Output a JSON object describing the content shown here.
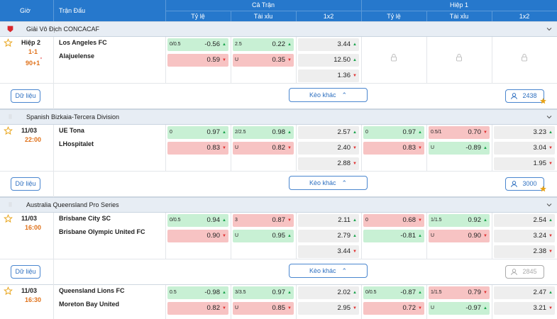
{
  "header": {
    "time": "Giờ",
    "match": "Trận Đấu",
    "full": "Cả Trận",
    "half": "Hiệp 1",
    "columns": [
      "Tỷ lệ",
      "Tài xỉu",
      "1x2",
      "Tỷ lệ",
      "Tài xỉu",
      "1x2"
    ]
  },
  "leagues": [
    {
      "name": "Giải Vô Địch CONCACAF",
      "matches": [
        {
          "time": "Hiệp 2",
          "score": "1-1",
          "clock": "90+1",
          "clock_mark": "'",
          "home": "Los Angeles FC",
          "away": "Alajuelense",
          "full": {
            "handicap": {
              "line": "0/0.5",
              "home": {
                "value": "-0.56",
                "move": "up"
              },
              "away": {
                "value": "0.59",
                "move": "down"
              }
            },
            "total": {
              "line": "2.5",
              "over": {
                "value": "0.22",
                "move": "up"
              },
              "under_label": "U",
              "under": {
                "value": "0.35",
                "move": "down"
              }
            },
            "x12": [
              {
                "value": "3.44",
                "move": "up"
              },
              {
                "value": "12.50",
                "move": "up"
              },
              {
                "value": "1.36",
                "move": "down"
              }
            ]
          },
          "half": null
        }
      ],
      "footer": {
        "data_button": "Dữ liệu",
        "more": "Kèo khác",
        "count": "2438",
        "active": true
      }
    },
    {
      "name": "Spanish Bizkaia-Tercera Division",
      "matches": [
        {
          "time": "11/03",
          "clock": "22:00",
          "home": "UE Tona",
          "away": "LHospitalet",
          "full": {
            "handicap": {
              "line": "0",
              "home": {
                "value": "0.97",
                "move": "up"
              },
              "away": {
                "value": "0.83",
                "move": "down"
              }
            },
            "total": {
              "line": "2/2.5",
              "over": {
                "value": "0.98",
                "move": "up"
              },
              "under_label": "U",
              "under": {
                "value": "0.82",
                "move": "down"
              }
            },
            "x12": [
              {
                "value": "2.57",
                "move": "up"
              },
              {
                "value": "2.40",
                "move": "down"
              },
              {
                "value": "2.88",
                "move": "down"
              }
            ]
          },
          "half": {
            "handicap": {
              "line": "0",
              "home": {
                "value": "0.97",
                "move": "up"
              },
              "away": {
                "value": "0.83",
                "move": "down"
              }
            },
            "total": {
              "line": "0.5/1",
              "over": {
                "value": "0.70",
                "move": "down"
              },
              "under_label": "U",
              "under": {
                "value": "-0.89",
                "move": "up"
              }
            },
            "x12": [
              {
                "value": "3.23",
                "move": "up"
              },
              {
                "value": "3.04",
                "move": "down"
              },
              {
                "value": "1.95",
                "move": "down"
              }
            ]
          }
        }
      ],
      "footer": {
        "data_button": "Dữ liệu",
        "more": "Kèo khác",
        "count": "3000",
        "active": true
      }
    },
    {
      "name": "Australia Queensland Pro Series",
      "matches": [
        {
          "time": "11/03",
          "clock": "16:00",
          "home": "Brisbane City SC",
          "away": "Brisbane Olympic United FC",
          "full": {
            "handicap": {
              "line": "0/0.5",
              "home": {
                "value": "0.94",
                "move": "up"
              },
              "away": {
                "value": "0.90",
                "move": "down"
              }
            },
            "total": {
              "line": "3",
              "over": {
                "value": "0.87",
                "move": "down"
              },
              "under_label": "U",
              "under": {
                "value": "0.95",
                "move": "up"
              }
            },
            "x12": [
              {
                "value": "2.11",
                "move": "up"
              },
              {
                "value": "2.79",
                "move": "up"
              },
              {
                "value": "3.44",
                "move": "down"
              }
            ]
          },
          "half": {
            "handicap": {
              "line": "0",
              "home": {
                "value": "0.68",
                "move": "down"
              },
              "away": {
                "value": "-0.81",
                "move": "up"
              }
            },
            "total": {
              "line": "1/1.5",
              "over": {
                "value": "0.92",
                "move": "up"
              },
              "under_label": "U",
              "under": {
                "value": "0.90",
                "move": "down"
              }
            },
            "x12": [
              {
                "value": "2.54",
                "move": "up"
              },
              {
                "value": "3.24",
                "move": "down"
              },
              {
                "value": "2.38",
                "move": "down"
              }
            ]
          }
        },
        {
          "time": "11/03",
          "clock": "16:30",
          "home": "Queensland Lions FC",
          "away": "Moreton Bay United",
          "full": {
            "handicap": {
              "line": "0.5",
              "home": {
                "value": "-0.98",
                "move": "up"
              },
              "away": {
                "value": "0.82",
                "move": "down"
              }
            },
            "total": {
              "line": "3/3.5",
              "over": {
                "value": "0.97",
                "move": "up"
              },
              "under_label": "U",
              "under": {
                "value": "0.85",
                "move": "down"
              }
            },
            "x12": [
              {
                "value": "2.02",
                "move": "up"
              },
              {
                "value": "2.95",
                "move": "down"
              }
            ]
          },
          "half": {
            "handicap": {
              "line": "0/0.5",
              "home": {
                "value": "-0.87",
                "move": "up"
              },
              "away": {
                "value": "0.72",
                "move": "down"
              }
            },
            "total": {
              "line": "1/1.5",
              "over": {
                "value": "0.79",
                "move": "down"
              },
              "under_label": "U",
              "under": {
                "value": "-0.97",
                "move": "up"
              }
            },
            "x12": [
              {
                "value": "2.47",
                "move": "up"
              },
              {
                "value": "3.21",
                "move": "down"
              }
            ]
          }
        }
      ],
      "footer": {
        "data_button": "Dữ liệu",
        "more": "Kèo khác",
        "count": "2845",
        "active": false
      }
    }
  ]
}
